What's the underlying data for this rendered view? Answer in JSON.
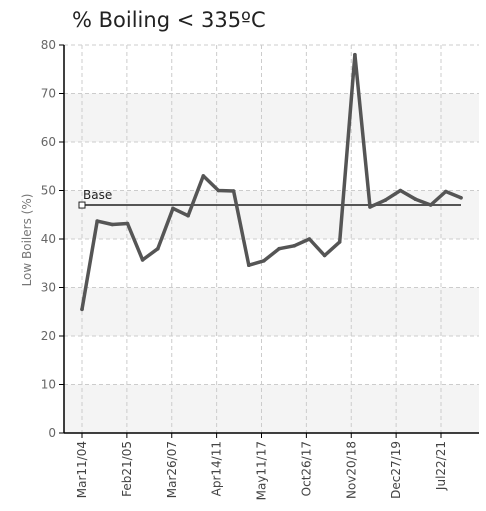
{
  "chart_data": {
    "type": "line",
    "title": "% Boiling < 335ºC",
    "xlabel": "",
    "ylabel": "Low Boilers (%)",
    "ylim": [
      0,
      80
    ],
    "yticks": [
      0,
      10,
      20,
      30,
      40,
      50,
      60,
      70,
      80
    ],
    "grid": true,
    "x_tick_labels": [
      "Mar11/04",
      "Feb21/05",
      "Mar26/07",
      "Apr14/11",
      "May11/17",
      "Oct26/17",
      "Nov20/18",
      "Dec27/19",
      "Jul22/21"
    ],
    "series": [
      {
        "name": "",
        "color": "#555555",
        "values": [
          25.5,
          43.7,
          43,
          43.2,
          35.7,
          38,
          46.3,
          44.8,
          53,
          50,
          49.9,
          34.6,
          35.5,
          38,
          38.6,
          40,
          36.6,
          39.4,
          78,
          46.6,
          48,
          50,
          48.2,
          47,
          49.8,
          48.5
        ]
      }
    ],
    "reference_line": {
      "label": "Base",
      "value": 47,
      "color": "#555555"
    },
    "colors": {
      "band": "#f4f4f4",
      "grid": "#cccccc",
      "axis": "#000000"
    }
  }
}
